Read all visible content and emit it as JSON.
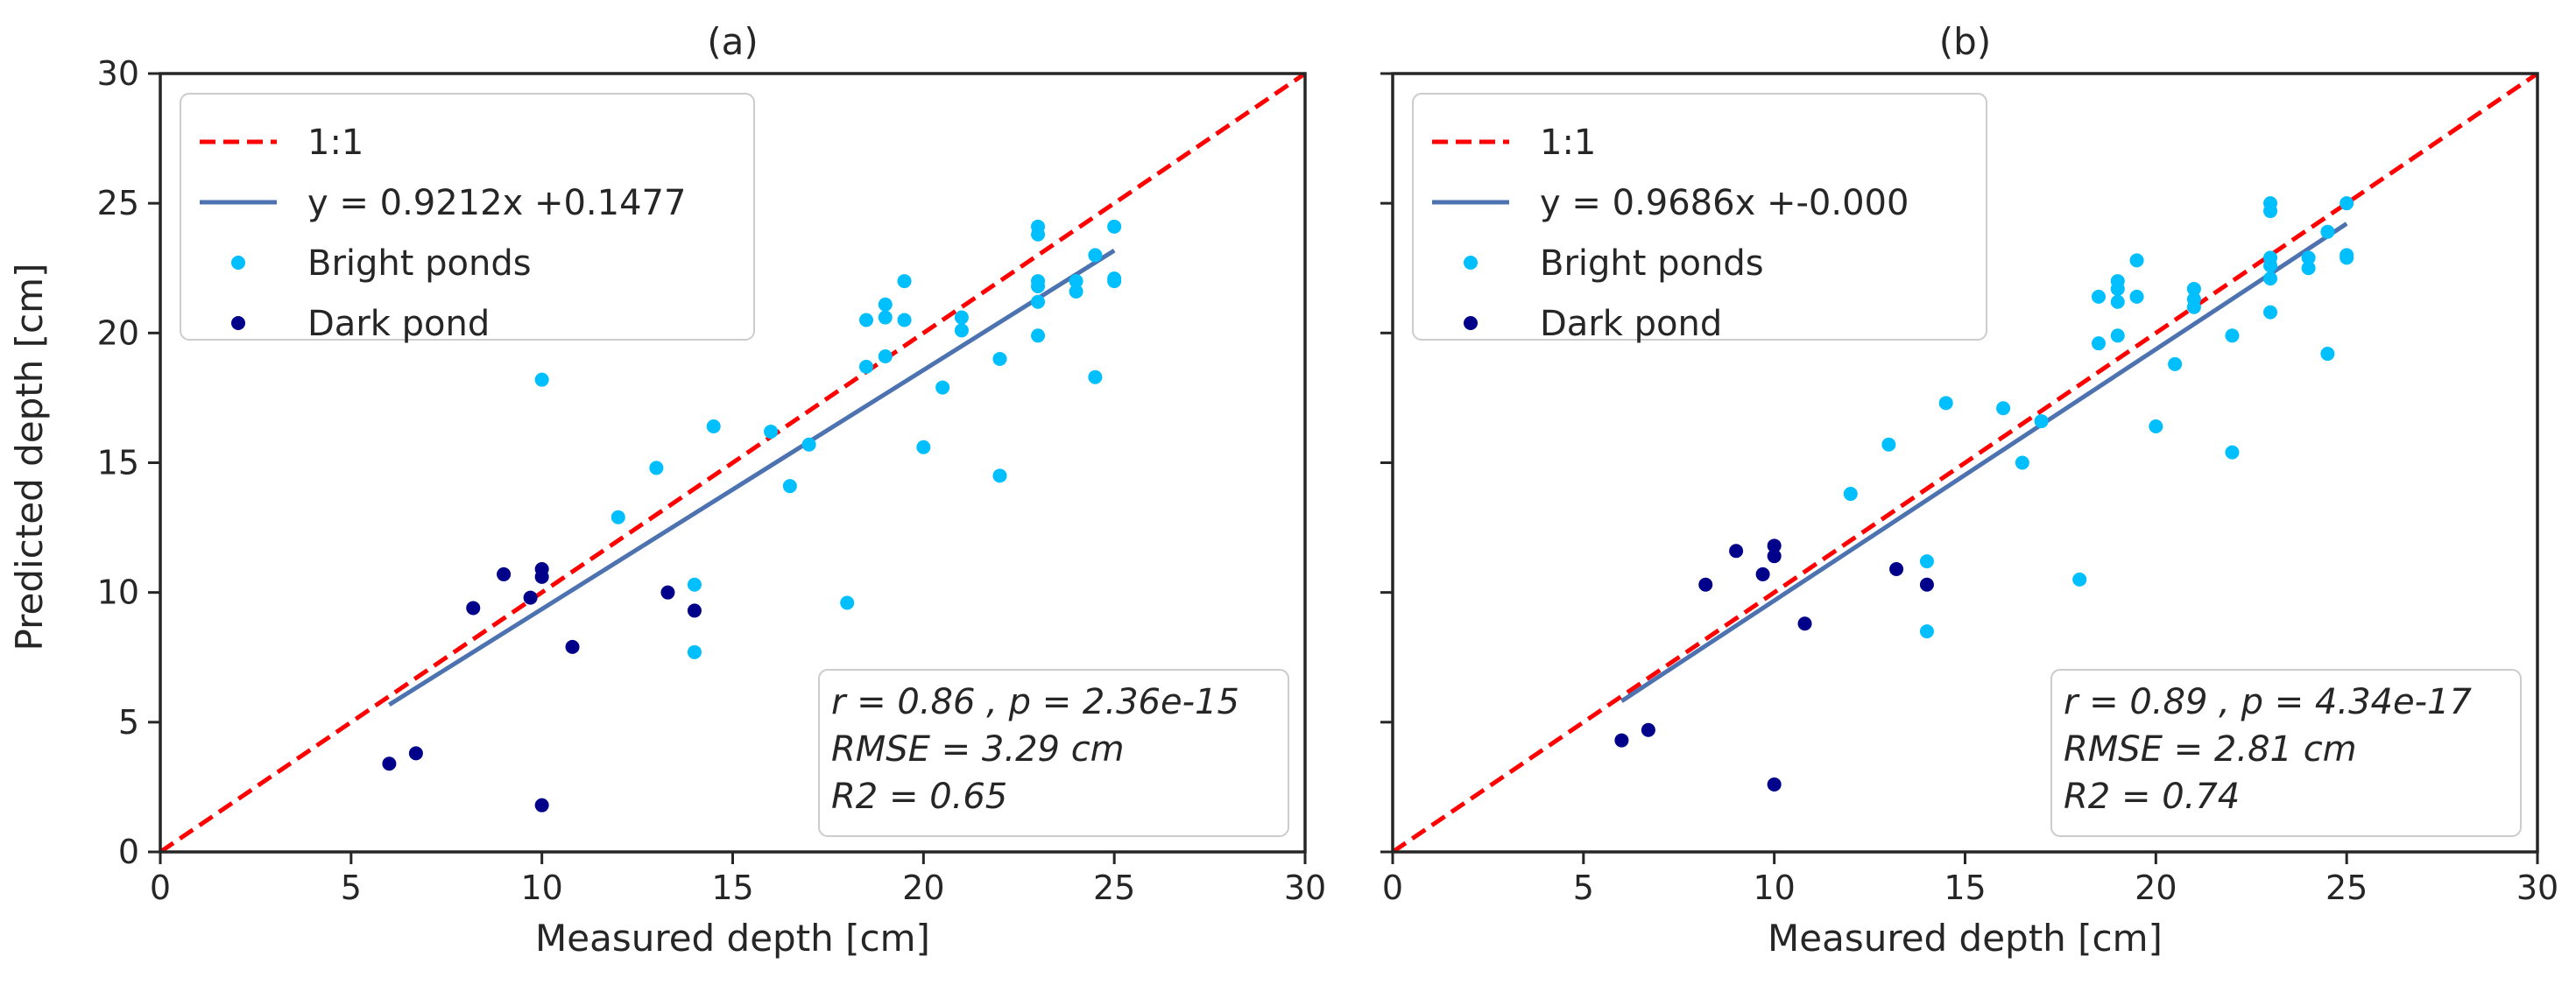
{
  "figure": {
    "ylabel": "Predicted depth [cm]",
    "xlabel": "Measured depth [cm]"
  },
  "colors": {
    "one_to_one": "#ff0000",
    "fit": "#4c72b0",
    "bright": "#00bfff",
    "dark": "#00008b",
    "axes": "#262626"
  },
  "chart_data": [
    {
      "type": "scatter",
      "title": "(a)",
      "xlabel": "Measured depth [cm]",
      "ylabel": "Predicted depth [cm]",
      "xlim": [
        0,
        30
      ],
      "ylim": [
        0,
        30
      ],
      "xticks": [
        0,
        5,
        10,
        15,
        20,
        25,
        30
      ],
      "yticks": [
        0,
        5,
        10,
        15,
        20,
        25,
        30
      ],
      "grid": false,
      "legend_position": "top-left",
      "reference_line": {
        "label": "1:1",
        "from": [
          0,
          0
        ],
        "to": [
          30,
          30
        ],
        "style": "dashed"
      },
      "fit_line": {
        "label": "y = 0.9212x +0.1477",
        "slope": 0.9212,
        "intercept": 0.1477,
        "x_range": [
          6,
          25
        ]
      },
      "series": [
        {
          "name": "Bright ponds",
          "points": [
            [
              10,
              18.2
            ],
            [
              12,
              12.9
            ],
            [
              13,
              14.8
            ],
            [
              14,
              10.3
            ],
            [
              14,
              7.7
            ],
            [
              14.5,
              16.4
            ],
            [
              16,
              16.2
            ],
            [
              16.5,
              14.1
            ],
            [
              17,
              15.7
            ],
            [
              18,
              9.6
            ],
            [
              18.5,
              20.5
            ],
            [
              18.5,
              18.7
            ],
            [
              19,
              21.1
            ],
            [
              19,
              20.6
            ],
            [
              19,
              19.1
            ],
            [
              19.5,
              22
            ],
            [
              19.5,
              20.5
            ],
            [
              20,
              15.6
            ],
            [
              20.5,
              17.9
            ],
            [
              21,
              20.6
            ],
            [
              21,
              20.1
            ],
            [
              22,
              19
            ],
            [
              22,
              14.5
            ],
            [
              23,
              24.1
            ],
            [
              23,
              23.8
            ],
            [
              23,
              22
            ],
            [
              23,
              21.8
            ],
            [
              23,
              21.2
            ],
            [
              23,
              19.9
            ],
            [
              24,
              22
            ],
            [
              24,
              21.6
            ],
            [
              24.5,
              23
            ],
            [
              24.5,
              18.3
            ],
            [
              25,
              24.1
            ],
            [
              25,
              22.1
            ],
            [
              25,
              22
            ]
          ]
        },
        {
          "name": "Dark pond",
          "points": [
            [
              6,
              3.4
            ],
            [
              6.7,
              3.8
            ],
            [
              8.2,
              9.4
            ],
            [
              9,
              10.7
            ],
            [
              9.7,
              9.8
            ],
            [
              10,
              10.9
            ],
            [
              10,
              10.6
            ],
            [
              10,
              1.8
            ],
            [
              10.8,
              7.9
            ],
            [
              13.3,
              10
            ],
            [
              14,
              9.3
            ]
          ]
        }
      ],
      "stats": {
        "line1": "r = 0.86 , p = 2.36e-15",
        "line2": "RMSE = 3.29 cm",
        "line3": "R2 = 0.65"
      }
    },
    {
      "type": "scatter",
      "title": "(b)",
      "xlabel": "Measured depth [cm]",
      "ylabel": "",
      "xlim": [
        0,
        30
      ],
      "ylim": [
        0,
        30
      ],
      "xticks": [
        0,
        5,
        10,
        15,
        20,
        25,
        30
      ],
      "yticks": [
        0,
        5,
        10,
        15,
        20,
        25,
        30
      ],
      "grid": false,
      "legend_position": "top-left",
      "reference_line": {
        "label": "1:1",
        "from": [
          0,
          0
        ],
        "to": [
          30,
          30
        ],
        "style": "dashed"
      },
      "fit_line": {
        "label": "y = 0.9686x +-0.000",
        "slope": 0.9686,
        "intercept": 0,
        "x_range": [
          6,
          25
        ]
      },
      "series": [
        {
          "name": "Bright ponds",
          "points": [
            [
              12,
              13.8
            ],
            [
              13,
              15.7
            ],
            [
              14,
              11.2
            ],
            [
              14,
              8.5
            ],
            [
              14.5,
              17.3
            ],
            [
              16,
              17.1
            ],
            [
              16.5,
              15
            ],
            [
              17,
              16.6
            ],
            [
              18,
              10.5
            ],
            [
              18.5,
              21.4
            ],
            [
              18.5,
              19.6
            ],
            [
              19,
              22
            ],
            [
              19,
              21.7
            ],
            [
              19,
              21.2
            ],
            [
              19,
              19.9
            ],
            [
              19.5,
              22.8
            ],
            [
              19.5,
              21.4
            ],
            [
              20,
              16.4
            ],
            [
              20.5,
              18.8
            ],
            [
              21,
              21.7
            ],
            [
              21,
              21.3
            ],
            [
              21,
              21
            ],
            [
              22,
              19.9
            ],
            [
              22,
              15.4
            ],
            [
              23,
              25
            ],
            [
              23,
              24.7
            ],
            [
              23,
              22.9
            ],
            [
              23,
              22.6
            ],
            [
              23,
              22.1
            ],
            [
              23,
              20.8
            ],
            [
              24,
              22.9
            ],
            [
              24,
              22.5
            ],
            [
              24.5,
              23.9
            ],
            [
              24.5,
              19.2
            ],
            [
              25,
              25
            ],
            [
              25,
              23
            ],
            [
              25,
              22.9
            ]
          ]
        },
        {
          "name": "Dark pond",
          "points": [
            [
              6,
              4.3
            ],
            [
              6.7,
              4.7
            ],
            [
              8.2,
              10.3
            ],
            [
              9,
              11.6
            ],
            [
              9.7,
              10.7
            ],
            [
              10,
              11.8
            ],
            [
              10,
              11.4
            ],
            [
              10,
              2.6
            ],
            [
              10.8,
              8.8
            ],
            [
              13.2,
              10.9
            ],
            [
              14,
              10.3
            ]
          ]
        }
      ],
      "stats": {
        "line1": "r = 0.89 , p = 4.34e-17",
        "line2": "RMSE = 2.81 cm",
        "line3": "R2 = 0.74"
      }
    }
  ]
}
